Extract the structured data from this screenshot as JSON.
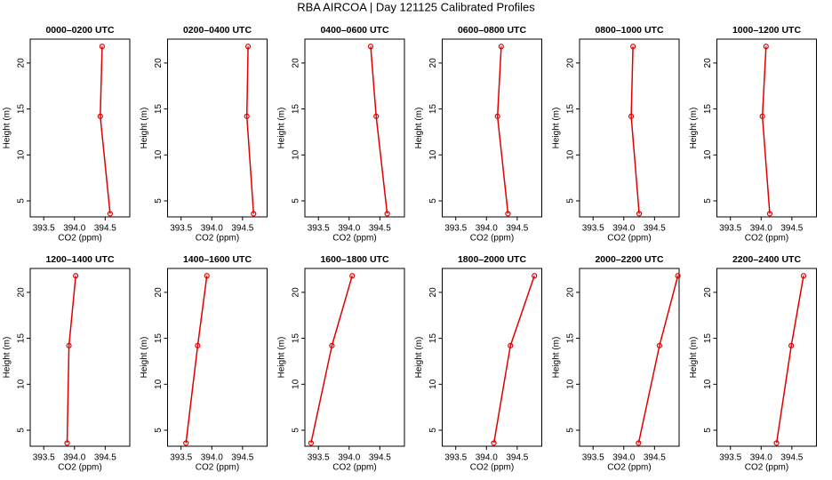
{
  "title": "RBA AIRCOA |  Day 121125  Calibrated Profiles",
  "chart_data": [
    {
      "type": "line",
      "title": "0000–0200 UTC",
      "x_label": "CO2 (ppm)",
      "y_label": "Height (m)",
      "color": "#e00000",
      "x": [
        394.58,
        394.42,
        394.45
      ],
      "values": [
        3.6,
        14.2,
        21.8
      ],
      "xlim": [
        393.28,
        394.9
      ],
      "ylim": [
        3.26,
        22.6
      ],
      "xticks": [
        393.5,
        {
          "value": 394,
          "label": "394.0"
        },
        394.5
      ],
      "yticks": [
        5,
        10,
        15,
        20
      ]
    },
    {
      "type": "line",
      "title": "0200–0400 UTC",
      "x_label": "CO2 (ppm)",
      "y_label": "Height (m)",
      "color": "#e00000",
      "x": [
        394.68,
        394.57,
        394.59
      ],
      "values": [
        3.6,
        14.2,
        21.8
      ],
      "xlim": [
        393.28,
        394.9
      ],
      "ylim": [
        3.26,
        22.6
      ],
      "xticks": [
        393.5,
        {
          "value": 394,
          "label": "394.0"
        },
        394.5
      ],
      "yticks": [
        5,
        10,
        15,
        20
      ]
    },
    {
      "type": "line",
      "title": "0400–0600 UTC",
      "x_label": "CO2 (ppm)",
      "y_label": "Height (m)",
      "color": "#e00000",
      "x": [
        394.62,
        394.44,
        394.35
      ],
      "values": [
        3.6,
        14.2,
        21.8
      ],
      "xlim": [
        393.28,
        394.9
      ],
      "ylim": [
        3.26,
        22.6
      ],
      "xticks": [
        393.5,
        {
          "value": 394,
          "label": "394.0"
        },
        394.5
      ],
      "yticks": [
        5,
        10,
        15,
        20
      ]
    },
    {
      "type": "line",
      "title": "0600–0800 UTC",
      "x_label": "CO2 (ppm)",
      "y_label": "Height (m)",
      "color": "#e00000",
      "x": [
        394.35,
        394.18,
        394.24
      ],
      "values": [
        3.6,
        14.2,
        21.8
      ],
      "xlim": [
        393.28,
        394.9
      ],
      "ylim": [
        3.26,
        22.6
      ],
      "xticks": [
        393.5,
        {
          "value": 394,
          "label": "394.0"
        },
        394.5
      ],
      "yticks": [
        5,
        10,
        15,
        20
      ]
    },
    {
      "type": "line",
      "title": "0800–1000 UTC",
      "x_label": "CO2 (ppm)",
      "y_label": "Height (m)",
      "color": "#e00000",
      "x": [
        394.25,
        394.12,
        394.15
      ],
      "values": [
        3.6,
        14.2,
        21.8
      ],
      "xlim": [
        393.28,
        394.9
      ],
      "ylim": [
        3.26,
        22.6
      ],
      "xticks": [
        393.5,
        {
          "value": 394,
          "label": "394.0"
        },
        394.5
      ],
      "yticks": [
        5,
        10,
        15,
        20
      ]
    },
    {
      "type": "line",
      "title": "1000–1200 UTC",
      "x_label": "CO2 (ppm)",
      "y_label": "Height (m)",
      "color": "#e00000",
      "x": [
        394.14,
        394.02,
        394.08
      ],
      "values": [
        3.6,
        14.2,
        21.8
      ],
      "xlim": [
        393.28,
        394.9
      ],
      "ylim": [
        3.26,
        22.6
      ],
      "xticks": [
        393.5,
        {
          "value": 394,
          "label": "394.0"
        },
        394.5
      ],
      "yticks": [
        5,
        10,
        15,
        20
      ]
    },
    {
      "type": "line",
      "title": "1200–1400 UTC",
      "x_label": "CO2 (ppm)",
      "y_label": "Height (m)",
      "color": "#e00000",
      "x": [
        393.88,
        393.91,
        394.02
      ],
      "values": [
        3.6,
        14.2,
        21.8
      ],
      "xlim": [
        393.28,
        394.9
      ],
      "ylim": [
        3.26,
        22.6
      ],
      "xticks": [
        393.5,
        {
          "value": 394,
          "label": "394.0"
        },
        394.5
      ],
      "yticks": [
        5,
        10,
        15,
        20
      ]
    },
    {
      "type": "line",
      "title": "1400–1600 UTC",
      "x_label": "CO2 (ppm)",
      "y_label": "Height (m)",
      "color": "#e00000",
      "x": [
        393.58,
        393.77,
        393.92
      ],
      "values": [
        3.6,
        14.2,
        21.8
      ],
      "xlim": [
        393.28,
        394.9
      ],
      "ylim": [
        3.26,
        22.6
      ],
      "xticks": [
        393.5,
        {
          "value": 394,
          "label": "394.0"
        },
        394.5
      ],
      "yticks": [
        5,
        10,
        15,
        20
      ]
    },
    {
      "type": "line",
      "title": "1600–1800 UTC",
      "x_label": "CO2 (ppm)",
      "y_label": "Height (m)",
      "color": "#e00000",
      "x": [
        393.38,
        393.72,
        394.05
      ],
      "values": [
        3.6,
        14.2,
        21.8
      ],
      "xlim": [
        393.28,
        394.9
      ],
      "ylim": [
        3.26,
        22.6
      ],
      "xticks": [
        393.5,
        {
          "value": 394,
          "label": "394.0"
        },
        394.5
      ],
      "yticks": [
        5,
        10,
        15,
        20
      ]
    },
    {
      "type": "line",
      "title": "1800–2000 UTC",
      "x_label": "CO2 (ppm)",
      "y_label": "Height (m)",
      "color": "#e00000",
      "x": [
        394.12,
        394.39,
        394.78
      ],
      "values": [
        3.6,
        14.2,
        21.8
      ],
      "xlim": [
        393.28,
        394.9
      ],
      "ylim": [
        3.26,
        22.6
      ],
      "xticks": [
        393.5,
        {
          "value": 394,
          "label": "394.0"
        },
        394.5
      ],
      "yticks": [
        5,
        10,
        15,
        20
      ]
    },
    {
      "type": "line",
      "title": "2000–2200 UTC",
      "x_label": "CO2 (ppm)",
      "y_label": "Height (m)",
      "color": "#e00000",
      "x": [
        394.24,
        394.58,
        394.88
      ],
      "values": [
        3.6,
        14.2,
        21.8
      ],
      "xlim": [
        393.28,
        394.9
      ],
      "ylim": [
        3.26,
        22.6
      ],
      "xticks": [
        393.5,
        {
          "value": 394,
          "label": "394.0"
        },
        394.5
      ],
      "yticks": [
        5,
        10,
        15,
        20
      ]
    },
    {
      "type": "line",
      "title": "2200–2400 UTC",
      "x_label": "CO2 (ppm)",
      "y_label": "Height (m)",
      "color": "#e00000",
      "x": [
        394.25,
        394.49,
        394.69
      ],
      "values": [
        3.6,
        14.2,
        21.8
      ],
      "xlim": [
        393.28,
        394.9
      ],
      "ylim": [
        3.26,
        22.6
      ],
      "xticks": [
        393.5,
        {
          "value": 394,
          "label": "394.0"
        },
        394.5
      ],
      "yticks": [
        5,
        10,
        15,
        20
      ]
    }
  ]
}
